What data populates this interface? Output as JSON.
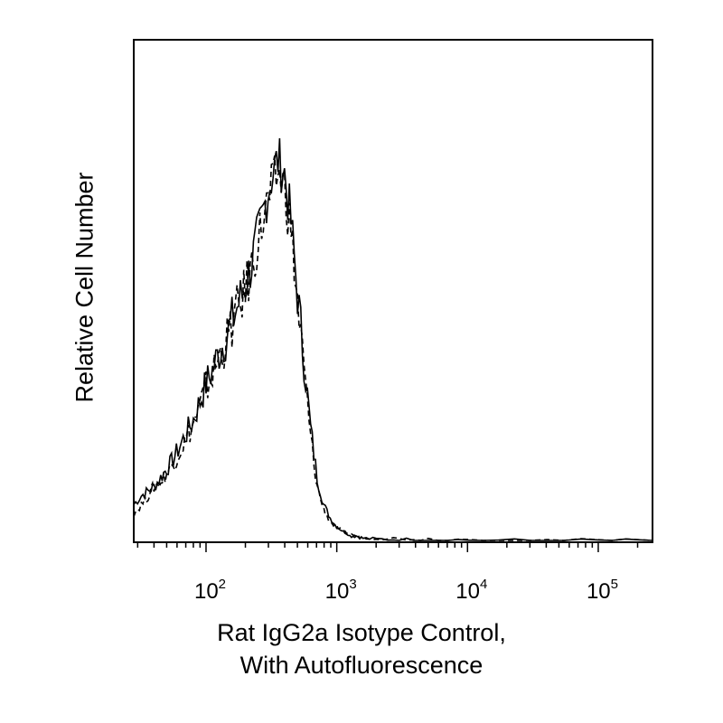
{
  "chart_data": {
    "type": "line",
    "title": "",
    "ylabel": "Relative Cell Number",
    "xlabel_lines": [
      "Rat IgG2a Isotype Control,",
      "With Autofluorescence"
    ],
    "xscale": "log",
    "xlim": [
      28,
      260000
    ],
    "ylim": [
      0,
      100
    ],
    "grid": false,
    "xticks": [
      {
        "value": 100,
        "base": "10",
        "exp": "2"
      },
      {
        "value": 1000,
        "base": "10",
        "exp": "3"
      },
      {
        "value": 10000,
        "base": "10",
        "exp": "4"
      },
      {
        "value": 100000,
        "base": "10",
        "exp": "5"
      }
    ],
    "series": [
      {
        "style": "solid",
        "x": [
          28,
          32,
          36,
          40,
          45,
          50,
          56,
          63,
          71,
          80,
          90,
          100,
          112,
          126,
          141,
          158,
          178,
          200,
          224,
          251,
          282,
          316,
          355,
          398,
          447,
          501,
          562,
          631,
          708,
          794,
          891,
          1000,
          1122,
          1259,
          1413,
          1585,
          2000,
          3000,
          5000,
          10000,
          30000,
          100000,
          260000
        ],
        "y": [
          8,
          10,
          11,
          12,
          14,
          16,
          18,
          21,
          24,
          27,
          31,
          35,
          38,
          42,
          45,
          49,
          53,
          57,
          62,
          68,
          75,
          81,
          85,
          82,
          71,
          55,
          40,
          25,
          14,
          8,
          5,
          3,
          2,
          1,
          1,
          0.5,
          0.3,
          0.2,
          0.2,
          0.1,
          0,
          0,
          0
        ]
      },
      {
        "style": "dashed",
        "x": [
          28,
          32,
          36,
          40,
          45,
          50,
          56,
          63,
          71,
          80,
          90,
          100,
          112,
          126,
          141,
          158,
          178,
          200,
          224,
          251,
          282,
          316,
          355,
          398,
          447,
          501,
          562,
          631,
          708,
          794,
          891,
          1000,
          1122,
          1259,
          1413,
          1585,
          2000,
          3000,
          5000,
          10000,
          30000,
          100000,
          260000
        ],
        "y": [
          6,
          8,
          10,
          12,
          13,
          15,
          17,
          20,
          23,
          26,
          30,
          34,
          37,
          41,
          44,
          48,
          52,
          56,
          61,
          67,
          73,
          78,
          82,
          79,
          69,
          53,
          38,
          23,
          12,
          7,
          4,
          3,
          2,
          1.5,
          1,
          0.7,
          0.5,
          0.4,
          0.3,
          0.2,
          0.1,
          0,
          0
        ]
      }
    ]
  }
}
